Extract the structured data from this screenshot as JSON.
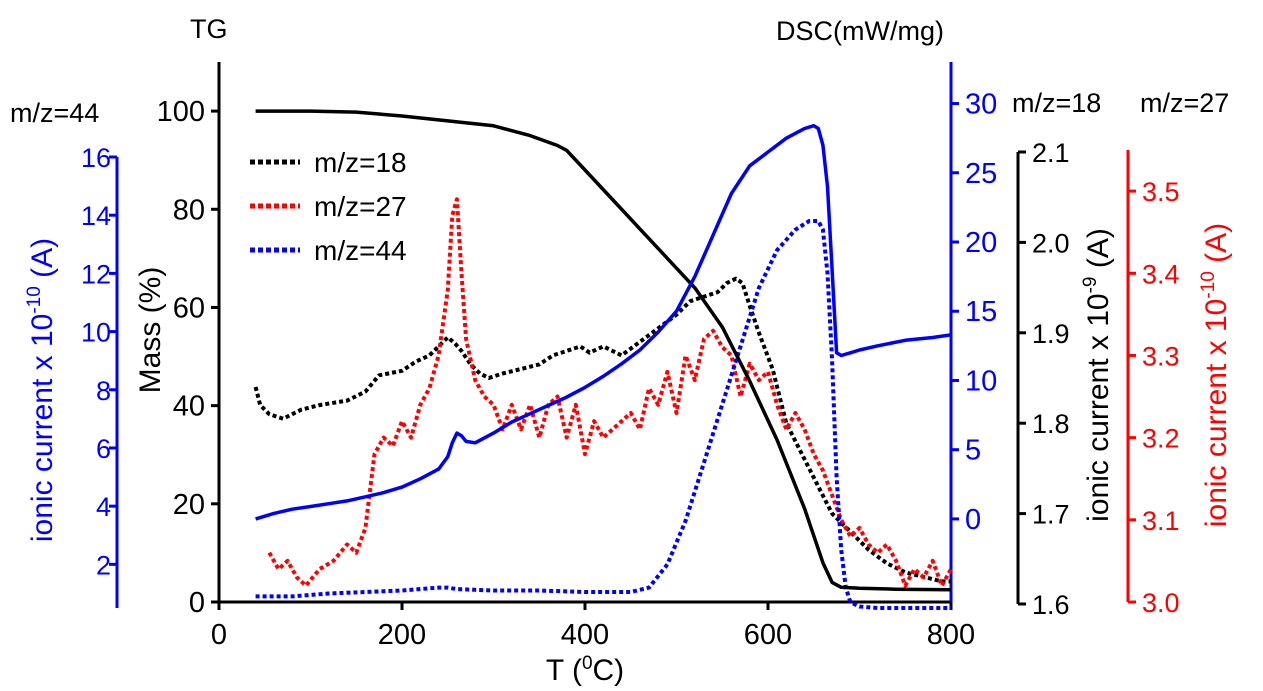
{
  "chart_data": {
    "type": "line",
    "xlabel": "T",
    "xunit": "(°C)",
    "xlim": [
      0,
      800
    ],
    "xticks": [
      0,
      200,
      400,
      600,
      800
    ],
    "axes": {
      "tg": {
        "title": "TG",
        "label": "Mass (%)",
        "lim": [
          0,
          110
        ],
        "ticks": [
          0,
          20,
          40,
          60,
          80,
          100
        ],
        "color": "#000000"
      },
      "dsc": {
        "title": "DSC(mW/mg)",
        "lim": [
          -6,
          33
        ],
        "ticks": [
          0,
          5,
          10,
          15,
          20,
          25,
          30
        ],
        "color": "#0000ff"
      },
      "mz44": {
        "title": "m/z=44",
        "label": "ionic current x 10",
        "exp": "-10",
        "unit": " (A)",
        "lim": [
          0.5,
          16
        ],
        "ticks": [
          2,
          4,
          6,
          8,
          10,
          12,
          14,
          16
        ],
        "color": "#0000ff"
      },
      "mz18": {
        "title": "m/z=18",
        "label": "ionic current x 10",
        "exp": "-9",
        "unit": " (A)",
        "lim": [
          1.6,
          2.1
        ],
        "ticks": [
          1.6,
          1.7,
          1.8,
          1.9,
          2.0,
          2.1
        ],
        "color": "#000000"
      },
      "mz27": {
        "title": "m/z=27",
        "label": "ionic current x 10",
        "exp": "-10",
        "unit": " (A)",
        "lim": [
          3.0,
          3.55
        ],
        "ticks": [
          3.0,
          3.1,
          3.2,
          3.3,
          3.4,
          3.5
        ],
        "color": "#ff0000"
      }
    },
    "legend_position": "top-left",
    "series": [
      {
        "name": "m/z=18",
        "axis": "mz18",
        "style": "dotted",
        "color": "#000000",
        "in_legend": true,
        "x": [
          40,
          45,
          55,
          70,
          90,
          110,
          140,
          160,
          175,
          185,
          200,
          215,
          230,
          240,
          250,
          258,
          265,
          275,
          285,
          295,
          310,
          330,
          350,
          365,
          380,
          395,
          405,
          420,
          440,
          460,
          480,
          500,
          515,
          530,
          545,
          555,
          565,
          572,
          580,
          590,
          605,
          620,
          640,
          655,
          670,
          690,
          710,
          730,
          750,
          770,
          790,
          800
        ],
        "y": [
          1.84,
          1.82,
          1.81,
          1.805,
          1.815,
          1.82,
          1.825,
          1.835,
          1.853,
          1.855,
          1.858,
          1.868,
          1.875,
          1.885,
          1.895,
          1.888,
          1.88,
          1.865,
          1.855,
          1.85,
          1.855,
          1.86,
          1.865,
          1.875,
          1.88,
          1.885,
          1.878,
          1.885,
          1.875,
          1.89,
          1.905,
          1.92,
          1.935,
          1.94,
          1.945,
          1.955,
          1.96,
          1.955,
          1.93,
          1.9,
          1.86,
          1.8,
          1.76,
          1.73,
          1.7,
          1.68,
          1.66,
          1.645,
          1.635,
          1.63,
          1.625,
          1.625
        ]
      },
      {
        "name": "m/z=27",
        "axis": "mz27",
        "style": "dotted",
        "color": "#ff0000",
        "in_legend": true,
        "x": [
          55,
          65,
          75,
          85,
          95,
          110,
          125,
          140,
          150,
          160,
          170,
          180,
          190,
          200,
          210,
          220,
          230,
          240,
          250,
          255,
          260,
          265,
          270,
          280,
          290,
          300,
          310,
          320,
          330,
          340,
          350,
          360,
          370,
          380,
          390,
          400,
          410,
          420,
          430,
          440,
          450,
          460,
          470,
          480,
          490,
          500,
          510,
          520,
          530,
          540,
          550,
          560,
          570,
          580,
          590,
          600,
          610,
          620,
          630,
          640,
          650,
          660,
          670,
          680,
          690,
          700,
          710,
          720,
          730,
          740,
          750,
          760,
          770,
          780,
          790,
          800
        ],
        "y": [
          3.06,
          3.04,
          3.05,
          3.03,
          3.02,
          3.04,
          3.05,
          3.07,
          3.06,
          3.09,
          3.18,
          3.2,
          3.19,
          3.22,
          3.2,
          3.24,
          3.26,
          3.3,
          3.38,
          3.47,
          3.49,
          3.4,
          3.32,
          3.27,
          3.25,
          3.24,
          3.21,
          3.24,
          3.21,
          3.24,
          3.2,
          3.24,
          3.25,
          3.2,
          3.24,
          3.18,
          3.22,
          3.2,
          3.21,
          3.22,
          3.23,
          3.21,
          3.26,
          3.24,
          3.28,
          3.23,
          3.3,
          3.27,
          3.32,
          3.33,
          3.31,
          3.3,
          3.25,
          3.29,
          3.27,
          3.28,
          3.24,
          3.21,
          3.23,
          3.21,
          3.18,
          3.16,
          3.13,
          3.1,
          3.08,
          3.09,
          3.07,
          3.06,
          3.07,
          3.05,
          3.02,
          3.04,
          3.03,
          3.05,
          3.02,
          3.04
        ]
      },
      {
        "name": "m/z=44",
        "axis": "mz44",
        "style": "dotted",
        "color": "#0000ff",
        "in_legend": true,
        "x": [
          40,
          80,
          120,
          160,
          200,
          240,
          250,
          260,
          300,
          350,
          400,
          450,
          470,
          490,
          510,
          530,
          550,
          570,
          590,
          610,
          630,
          645,
          655,
          660,
          665,
          670,
          675,
          680,
          685,
          690,
          700,
          720,
          760,
          800
        ],
        "y": [
          0.9,
          0.9,
          1.0,
          1.05,
          1.1,
          1.2,
          1.2,
          1.15,
          1.1,
          1.1,
          1.05,
          1.05,
          1.2,
          2.0,
          3.5,
          5.5,
          7.5,
          9.5,
          11.5,
          12.8,
          13.5,
          13.8,
          13.8,
          13.5,
          12.0,
          9.0,
          5.0,
          2.5,
          1.2,
          0.7,
          0.55,
          0.5,
          0.5,
          0.5
        ]
      },
      {
        "name": "",
        "axis": "tg",
        "style": "solid",
        "color": "#000000",
        "in_legend": false,
        "x": [
          40,
          100,
          150,
          200,
          250,
          300,
          340,
          370,
          380,
          400,
          430,
          460,
          490,
          520,
          550,
          580,
          610,
          640,
          660,
          670,
          680,
          700,
          740,
          800
        ],
        "y": [
          100,
          100,
          99.8,
          99,
          98,
          97,
          95,
          93,
          92,
          88,
          82,
          76,
          70,
          64,
          56,
          45,
          33,
          19,
          8,
          4,
          3,
          2.8,
          2.6,
          2.5
        ]
      },
      {
        "name": "",
        "axis": "dsc",
        "style": "solid",
        "color": "#0000ff",
        "in_legend": false,
        "x": [
          40,
          60,
          80,
          100,
          120,
          140,
          160,
          180,
          200,
          220,
          240,
          250,
          255,
          260,
          265,
          270,
          280,
          300,
          320,
          340,
          360,
          380,
          400,
          420,
          440,
          460,
          480,
          500,
          520,
          540,
          560,
          580,
          600,
          620,
          640,
          650,
          655,
          660,
          665,
          670,
          675,
          680,
          690,
          700,
          720,
          750,
          780,
          800
        ],
        "y": [
          0,
          0.4,
          0.7,
          0.9,
          1.1,
          1.3,
          1.6,
          1.9,
          2.3,
          2.9,
          3.6,
          4.5,
          5.5,
          6.2,
          6.0,
          5.6,
          5.5,
          6.2,
          7.0,
          7.6,
          8.2,
          8.8,
          9.5,
          10.3,
          11.2,
          12.2,
          13.5,
          15.0,
          17.5,
          20.5,
          23.5,
          25.5,
          26.5,
          27.5,
          28.2,
          28.4,
          28.2,
          27.0,
          24.0,
          18.0,
          12.0,
          11.8,
          12.0,
          12.2,
          12.5,
          12.9,
          13.1,
          13.3
        ]
      }
    ]
  }
}
